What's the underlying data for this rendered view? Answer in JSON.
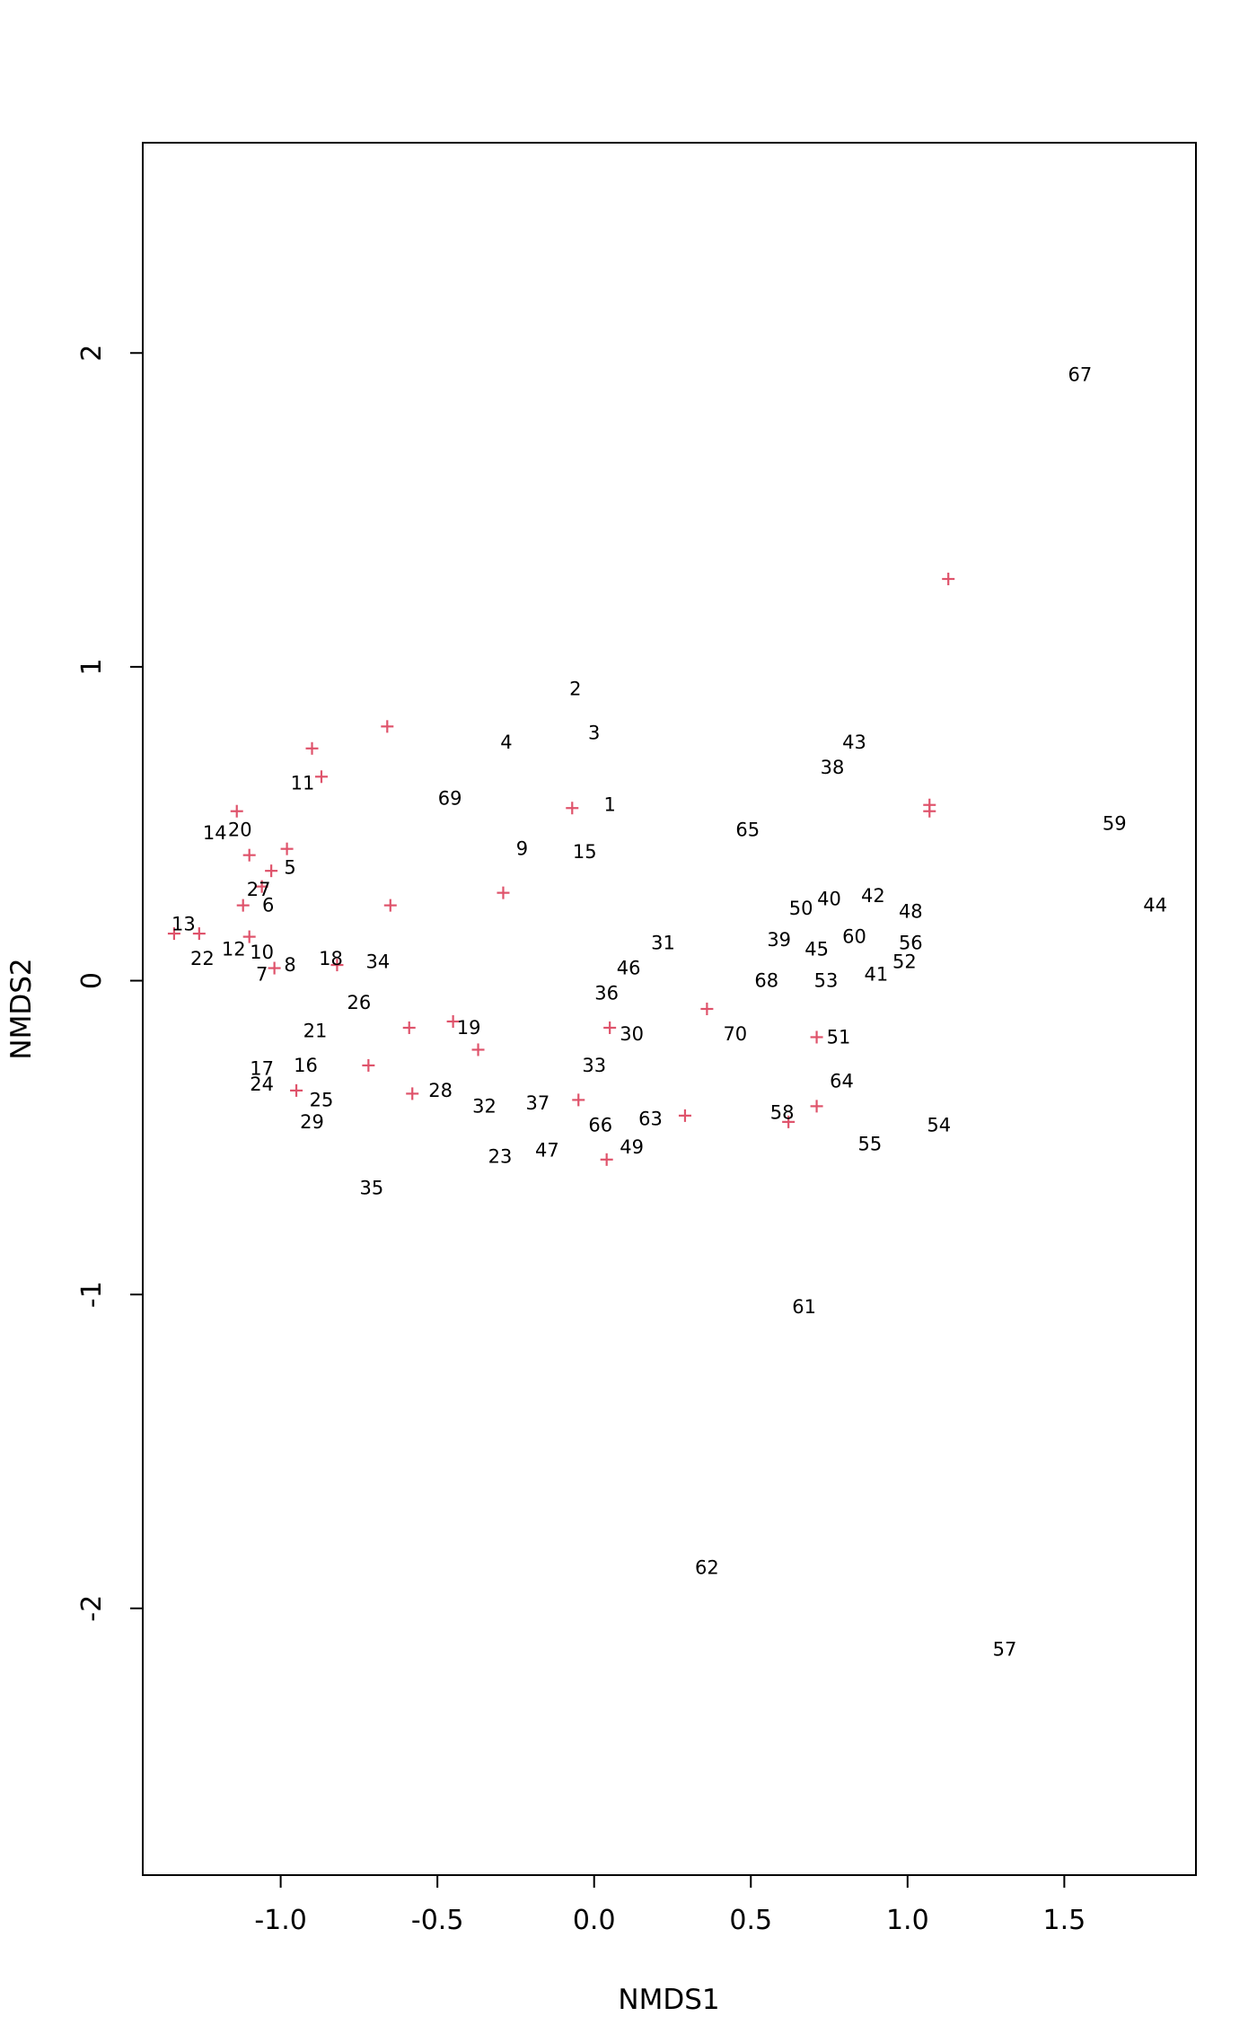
{
  "chart_data": {
    "type": "scatter",
    "title": "",
    "xlabel": "NMDS1",
    "ylabel": "NMDS2",
    "xlim": [
      -1.44,
      1.92
    ],
    "ylim": [
      -2.85,
      2.67
    ],
    "xticks": [
      -1.0,
      -0.5,
      0.0,
      0.5,
      1.0,
      1.5
    ],
    "xtick_labels": [
      "-1.0",
      "-0.5",
      "0.0",
      "0.5",
      "1.0",
      "1.5"
    ],
    "yticks": [
      -2,
      -1,
      0,
      1,
      2
    ],
    "ytick_labels": [
      "-2",
      "-1",
      "0",
      "1",
      "2"
    ],
    "grid": false,
    "species_color": "#DF536B",
    "sites": [
      {
        "label": "1",
        "x": 0.05,
        "y": 0.56
      },
      {
        "label": "2",
        "x": -0.06,
        "y": 0.93
      },
      {
        "label": "3",
        "x": 0.0,
        "y": 0.79
      },
      {
        "label": "4",
        "x": -0.28,
        "y": 0.76
      },
      {
        "label": "5",
        "x": -0.97,
        "y": 0.36
      },
      {
        "label": "6",
        "x": -1.04,
        "y": 0.24
      },
      {
        "label": "7",
        "x": -1.06,
        "y": 0.02
      },
      {
        "label": "8",
        "x": -0.97,
        "y": 0.05
      },
      {
        "label": "9",
        "x": -0.23,
        "y": 0.42
      },
      {
        "label": "10",
        "x": -1.06,
        "y": 0.09
      },
      {
        "label": "11",
        "x": -0.93,
        "y": 0.63
      },
      {
        "label": "12",
        "x": -1.15,
        "y": 0.1
      },
      {
        "label": "13",
        "x": -1.31,
        "y": 0.18
      },
      {
        "label": "14",
        "x": -1.21,
        "y": 0.47
      },
      {
        "label": "15",
        "x": -0.03,
        "y": 0.41
      },
      {
        "label": "16",
        "x": -0.92,
        "y": -0.27
      },
      {
        "label": "17",
        "x": -1.06,
        "y": -0.28
      },
      {
        "label": "18",
        "x": -0.84,
        "y": 0.07
      },
      {
        "label": "19",
        "x": -0.4,
        "y": -0.15
      },
      {
        "label": "20",
        "x": -1.13,
        "y": 0.48
      },
      {
        "label": "21",
        "x": -0.89,
        "y": -0.16
      },
      {
        "label": "22",
        "x": -1.25,
        "y": 0.07
      },
      {
        "label": "23",
        "x": -0.3,
        "y": -0.56
      },
      {
        "label": "24",
        "x": -1.06,
        "y": -0.33
      },
      {
        "label": "25",
        "x": -0.87,
        "y": -0.38
      },
      {
        "label": "26",
        "x": -0.75,
        "y": -0.07
      },
      {
        "label": "27",
        "x": -1.07,
        "y": 0.29
      },
      {
        "label": "28",
        "x": -0.49,
        "y": -0.35
      },
      {
        "label": "29",
        "x": -0.9,
        "y": -0.45
      },
      {
        "label": "30",
        "x": 0.12,
        "y": -0.17
      },
      {
        "label": "31",
        "x": 0.22,
        "y": 0.12
      },
      {
        "label": "32",
        "x": -0.35,
        "y": -0.4
      },
      {
        "label": "33",
        "x": 0.0,
        "y": -0.27
      },
      {
        "label": "34",
        "x": -0.69,
        "y": 0.06
      },
      {
        "label": "35",
        "x": -0.71,
        "y": -0.66
      },
      {
        "label": "36",
        "x": 0.04,
        "y": -0.04
      },
      {
        "label": "37",
        "x": -0.18,
        "y": -0.39
      },
      {
        "label": "38",
        "x": 0.76,
        "y": 0.68
      },
      {
        "label": "39",
        "x": 0.59,
        "y": 0.13
      },
      {
        "label": "40",
        "x": 0.75,
        "y": 0.26
      },
      {
        "label": "41",
        "x": 0.9,
        "y": 0.02
      },
      {
        "label": "42",
        "x": 0.89,
        "y": 0.27
      },
      {
        "label": "43",
        "x": 0.83,
        "y": 0.76
      },
      {
        "label": "44",
        "x": 1.79,
        "y": 0.24
      },
      {
        "label": "45",
        "x": 0.71,
        "y": 0.1
      },
      {
        "label": "46",
        "x": 0.11,
        "y": 0.04
      },
      {
        "label": "47",
        "x": -0.15,
        "y": -0.54
      },
      {
        "label": "48",
        "x": 1.01,
        "y": 0.22
      },
      {
        "label": "49",
        "x": 0.12,
        "y": -0.53
      },
      {
        "label": "50",
        "x": 0.66,
        "y": 0.23
      },
      {
        "label": "51",
        "x": 0.78,
        "y": -0.18
      },
      {
        "label": "52",
        "x": 0.99,
        "y": 0.06
      },
      {
        "label": "53",
        "x": 0.74,
        "y": 0.0
      },
      {
        "label": "54",
        "x": 1.1,
        "y": -0.46
      },
      {
        "label": "55",
        "x": 0.88,
        "y": -0.52
      },
      {
        "label": "56",
        "x": 1.01,
        "y": 0.12
      },
      {
        "label": "57",
        "x": 1.31,
        "y": -2.13
      },
      {
        "label": "58",
        "x": 0.6,
        "y": -0.42
      },
      {
        "label": "59",
        "x": 1.66,
        "y": 0.5
      },
      {
        "label": "60",
        "x": 0.83,
        "y": 0.14
      },
      {
        "label": "61",
        "x": 0.67,
        "y": -1.04
      },
      {
        "label": "62",
        "x": 0.36,
        "y": -1.87
      },
      {
        "label": "63",
        "x": 0.18,
        "y": -0.44
      },
      {
        "label": "64",
        "x": 0.79,
        "y": -0.32
      },
      {
        "label": "65",
        "x": 0.49,
        "y": 0.48
      },
      {
        "label": "66",
        "x": 0.02,
        "y": -0.46
      },
      {
        "label": "67",
        "x": 1.55,
        "y": 1.93
      },
      {
        "label": "68",
        "x": 0.55,
        "y": 0.0
      },
      {
        "label": "69",
        "x": -0.46,
        "y": 0.58
      },
      {
        "label": "70",
        "x": 0.45,
        "y": -0.17
      }
    ],
    "species": [
      {
        "x": 1.13,
        "y": 1.28
      },
      {
        "x": -0.66,
        "y": 0.81
      },
      {
        "x": -0.9,
        "y": 0.74
      },
      {
        "x": -0.87,
        "y": 0.65
      },
      {
        "x": -1.14,
        "y": 0.54
      },
      {
        "x": -0.07,
        "y": 0.55
      },
      {
        "x": 1.07,
        "y": 0.56
      },
      {
        "x": 1.07,
        "y": 0.54
      },
      {
        "x": -0.98,
        "y": 0.42
      },
      {
        "x": -1.1,
        "y": 0.4
      },
      {
        "x": -1.03,
        "y": 0.35
      },
      {
        "x": -0.29,
        "y": 0.28
      },
      {
        "x": -1.06,
        "y": 0.3
      },
      {
        "x": -1.12,
        "y": 0.24
      },
      {
        "x": -0.65,
        "y": 0.24
      },
      {
        "x": -1.34,
        "y": 0.15
      },
      {
        "x": -1.26,
        "y": 0.15
      },
      {
        "x": -1.1,
        "y": 0.14
      },
      {
        "x": -1.02,
        "y": 0.04
      },
      {
        "x": -0.82,
        "y": 0.05
      },
      {
        "x": 0.36,
        "y": -0.09
      },
      {
        "x": -0.45,
        "y": -0.13
      },
      {
        "x": -0.59,
        "y": -0.15
      },
      {
        "x": 0.05,
        "y": -0.15
      },
      {
        "x": 0.71,
        "y": -0.18
      },
      {
        "x": -0.37,
        "y": -0.22
      },
      {
        "x": -0.72,
        "y": -0.27
      },
      {
        "x": -0.95,
        "y": -0.35
      },
      {
        "x": -0.58,
        "y": -0.36
      },
      {
        "x": -0.05,
        "y": -0.38
      },
      {
        "x": 0.71,
        "y": -0.4
      },
      {
        "x": 0.29,
        "y": -0.43
      },
      {
        "x": 0.62,
        "y": -0.45
      },
      {
        "x": 0.04,
        "y": -0.57
      }
    ]
  }
}
